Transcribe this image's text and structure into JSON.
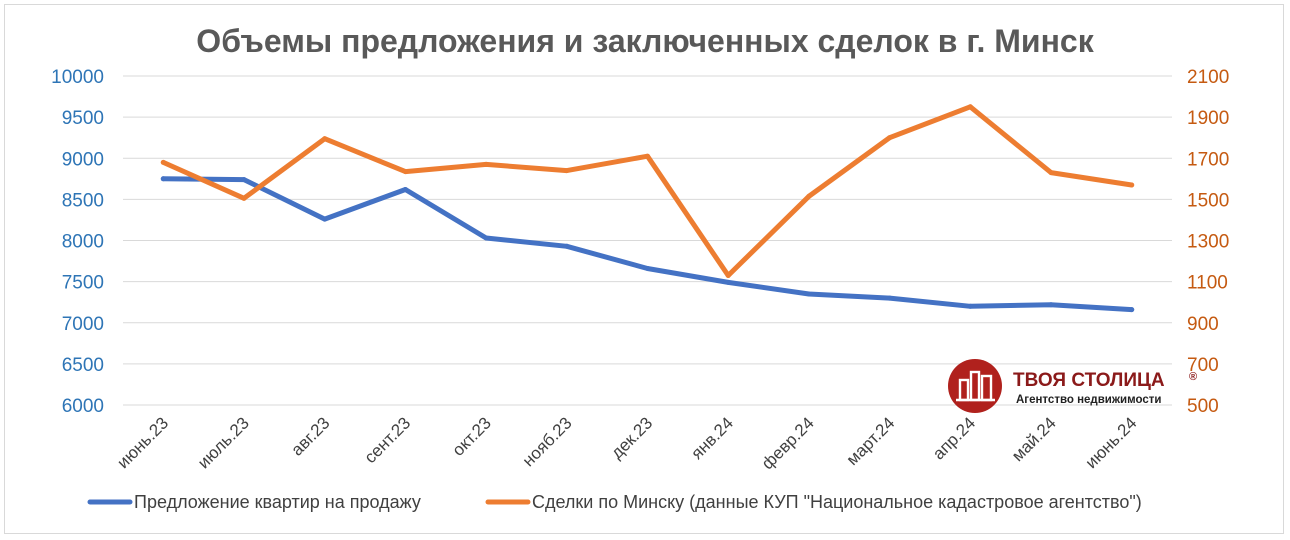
{
  "chart_data": {
    "type": "line",
    "title": "Объемы предложения и заключенных сделок в г. Минск",
    "categories": [
      "июнь.23",
      "июль.23",
      "авг.23",
      "сент.23",
      "окт.23",
      "нояб.23",
      "дек.23",
      "янв.24",
      "февр.24",
      "март.24",
      "апр.24",
      "май.24",
      "июнь.24"
    ],
    "y_left": {
      "min": 6000,
      "max": 10000,
      "step": 500,
      "ticks": [
        "10000",
        "9500",
        "9000",
        "8500",
        "8000",
        "7500",
        "7000",
        "6500",
        "6000"
      ]
    },
    "y_right": {
      "min": 500,
      "max": 2100,
      "step": 200,
      "ticks": [
        "2100",
        "1900",
        "1700",
        "1500",
        "1300",
        "1100",
        "900",
        "700",
        "500"
      ]
    },
    "grid": true,
    "legend_position": "bottom",
    "series": [
      {
        "name": "Предложение квартир на продажу",
        "axis": "left",
        "color": "#4472c4",
        "values": [
          8750,
          8740,
          8260,
          8620,
          8030,
          7930,
          7660,
          7490,
          7350,
          7300,
          7200,
          7220,
          7160
        ]
      },
      {
        "name": "Сделки по Минску (данные КУП \"Национальное кадастровое агентство\")",
        "axis": "right",
        "color": "#ed7d31",
        "values": [
          1680,
          1505,
          1795,
          1635,
          1670,
          1640,
          1710,
          1130,
          1515,
          1800,
          1950,
          1630,
          1570
        ]
      }
    ]
  },
  "logo": {
    "name": "ТВОЯ СТОЛИЦА",
    "tagline": "Агентство недвижимости",
    "mark": "®",
    "color": "#b0211d"
  }
}
